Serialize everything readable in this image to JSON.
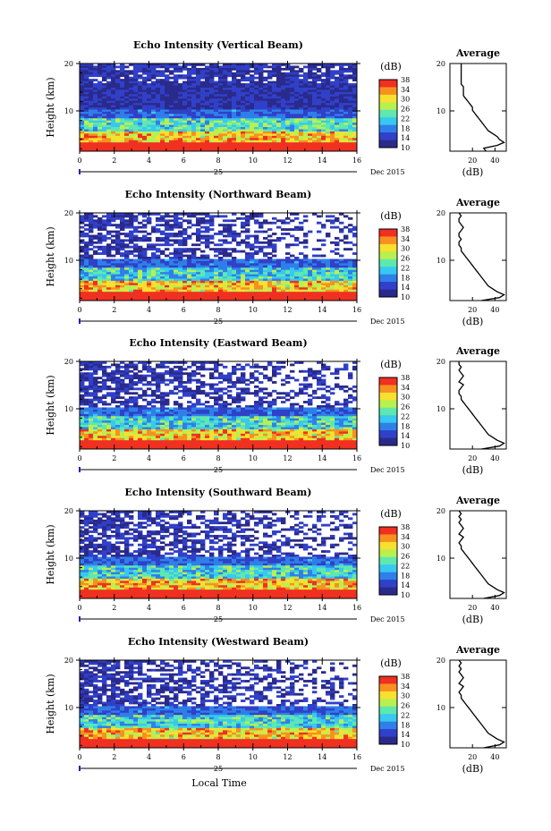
{
  "chart_data": {
    "type": "heatmap",
    "figure_xlabel": "Local Time",
    "panels": [
      {
        "title": "Echo Intensity (Vertical Beam)",
        "avg_profile": [
          32,
          30,
          42,
          48,
          44,
          42,
          38,
          34,
          32,
          30,
          28,
          26,
          24,
          22,
          20,
          20,
          18,
          16,
          14,
          12,
          12,
          12,
          12,
          10,
          10,
          10,
          10,
          10,
          10,
          10,
          10
        ]
      },
      {
        "title": "Echo Intensity (Northward Beam)",
        "avg_profile": [
          28,
          44,
          48,
          42,
          38,
          34,
          32,
          30,
          28,
          26,
          24,
          22,
          20,
          18,
          16,
          14,
          12,
          10,
          10,
          8,
          8,
          10,
          8,
          8,
          10,
          12,
          10,
          8,
          8,
          10,
          8
        ]
      },
      {
        "title": "Echo Intensity (Eastward Beam)",
        "avg_profile": [
          28,
          44,
          48,
          42,
          38,
          34,
          32,
          30,
          28,
          26,
          24,
          22,
          20,
          18,
          16,
          14,
          12,
          10,
          10,
          8,
          8,
          10,
          12,
          8,
          10,
          12,
          10,
          8,
          10,
          8,
          8
        ]
      },
      {
        "title": "Echo Intensity (Southward Beam)",
        "avg_profile": [
          30,
          44,
          48,
          42,
          38,
          34,
          32,
          30,
          28,
          26,
          24,
          22,
          20,
          18,
          16,
          14,
          12,
          10,
          10,
          8,
          10,
          12,
          8,
          10,
          12,
          10,
          8,
          10,
          8,
          10,
          8
        ]
      },
      {
        "title": "Echo Intensity (Westward Beam)",
        "avg_profile": [
          30,
          44,
          48,
          42,
          38,
          34,
          32,
          30,
          28,
          26,
          24,
          22,
          20,
          18,
          16,
          14,
          12,
          10,
          10,
          8,
          10,
          12,
          8,
          10,
          12,
          10,
          8,
          10,
          8,
          10,
          8
        ]
      }
    ],
    "ylabel": "Height (km)",
    "y_ticks": [
      "20",
      "10"
    ],
    "ylim_km": [
      1.5,
      20
    ],
    "x_ticks": [
      "0",
      "2",
      "4",
      "6",
      "8",
      "10",
      "12",
      "14",
      "16"
    ],
    "xlim_hours": [
      0,
      16
    ],
    "date_day": "25",
    "date_month_year": "Dec 2015",
    "colorbar_unit": "(dB)",
    "colorbar_ticks": [
      "38",
      "34",
      "30",
      "26",
      "22",
      "18",
      "14",
      "10"
    ],
    "colorbar_range": [
      10,
      38
    ],
    "average_title": "Average",
    "average_xlabel": "(dB)",
    "average_x_ticks": [
      "20",
      "40"
    ],
    "average_xlim": [
      0,
      50
    ],
    "colormap": [
      "#2a2a8c",
      "#3040c8",
      "#2f7fe8",
      "#38c8f0",
      "#5ee8b0",
      "#b8f050",
      "#f8e030",
      "#f89020",
      "#f03020"
    ]
  }
}
